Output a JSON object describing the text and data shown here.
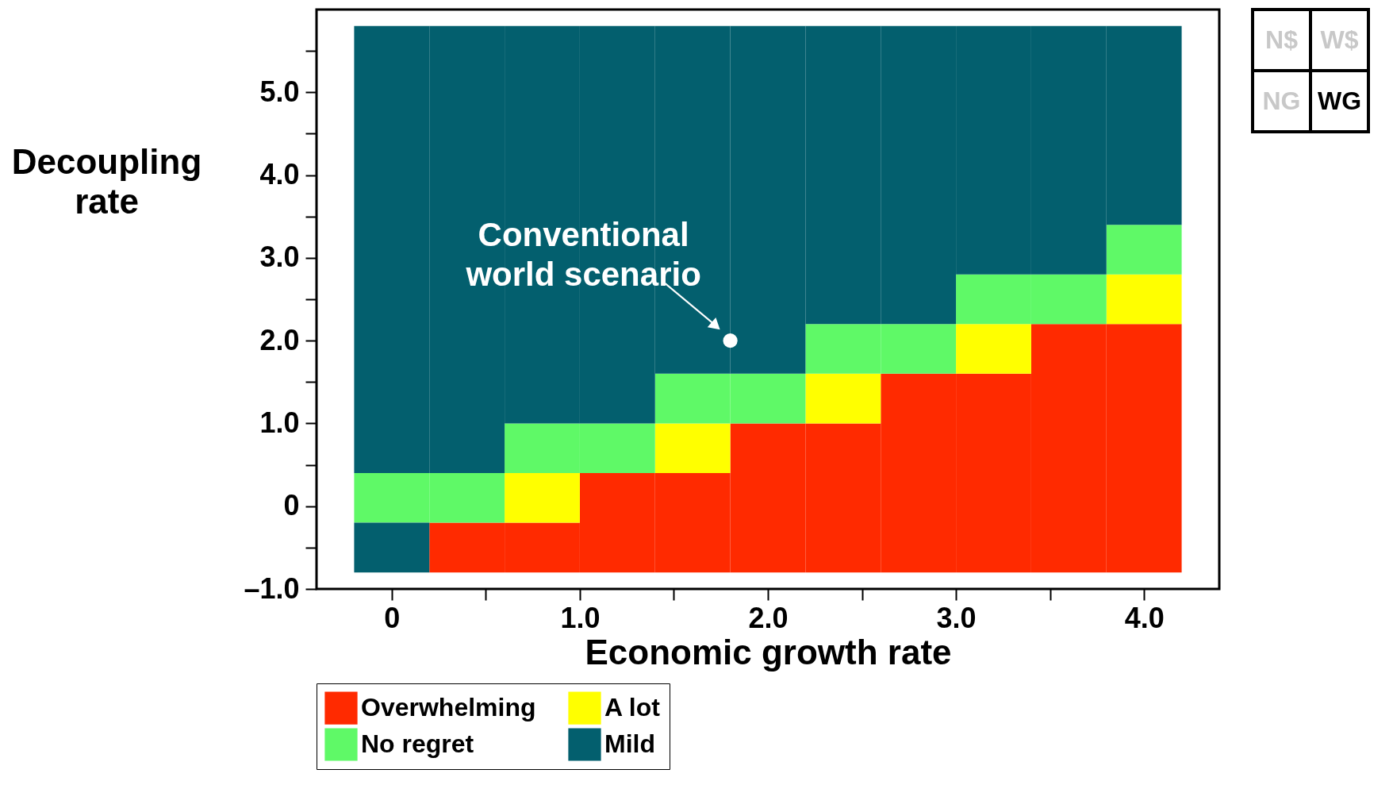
{
  "chart_data": [
    {
      "type": "bar",
      "xlabel": "Economic growth rate",
      "ylabel": "Decoupling\nrate",
      "x": [
        0,
        0.4,
        0.8,
        1.2,
        1.6,
        2.0,
        2.4,
        2.8,
        3.2,
        3.6,
        4.0
      ],
      "series": [
        {
          "color": "#035f6e",
          "base": [
            -0.8,
            null,
            null,
            null,
            null,
            null,
            null,
            null,
            null,
            null,
            null
          ],
          "values": [
            0.6,
            null,
            null,
            null,
            null,
            null,
            null,
            null,
            null,
            null,
            null
          ]
        },
        {
          "name": "Overwhelming",
          "color": "#ff2a00",
          "base": [
            null,
            -0.8,
            -0.8,
            -0.8,
            -0.8,
            -0.8,
            -0.8,
            -0.8,
            -0.8,
            -0.8,
            -0.8
          ],
          "values": [
            null,
            0.6,
            0.6,
            1.2,
            1.2,
            1.8,
            1.8,
            2.4,
            2.4,
            3.0,
            3.0
          ]
        },
        {
          "name": "A lot",
          "color": "#ffff00",
          "base": [
            null,
            null,
            -0.2,
            null,
            0.4,
            null,
            1.0,
            null,
            1.6,
            null,
            2.2
          ],
          "values": [
            null,
            null,
            0.6,
            null,
            0.6,
            null,
            0.6,
            null,
            0.6,
            null,
            0.6
          ]
        },
        {
          "name": "No regret",
          "color": "#5ff967",
          "base": [
            -0.2,
            -0.2,
            0.4,
            0.4,
            1.0,
            1.0,
            1.6,
            1.6,
            2.2,
            2.2,
            2.8
          ],
          "values": [
            0.6,
            0.6,
            0.6,
            0.6,
            0.6,
            0.6,
            0.6,
            0.6,
            0.6,
            0.6,
            0.6
          ]
        },
        {
          "name": "Mild",
          "color": "#035f6e",
          "base": [
            0.4,
            0.4,
            1.0,
            1.0,
            1.6,
            1.6,
            2.2,
            2.2,
            2.8,
            2.8,
            3.4
          ],
          "values": [
            5.4,
            5.4,
            4.8,
            4.8,
            4.2,
            4.2,
            3.6,
            3.6,
            3.0,
            3.0,
            2.4
          ]
        },
        {
          "type": "scatter",
          "color": "#ffffff",
          "x": [
            1.8
          ],
          "values": [
            2.0
          ]
        }
      ],
      "annotations": [
        {
          "text": "Conventional\nworld scenario",
          "x": 1.8,
          "y": 2.0
        }
      ],
      "xlim": [
        -0.4,
        4.4
      ],
      "ylim": [
        -1.0,
        6.0
      ],
      "xticks": [
        0,
        {
          "value": 0.5,
          "label": null
        },
        {
          "value": 1,
          "label": "1.0"
        },
        {
          "value": 1.5,
          "label": null
        },
        {
          "value": 2,
          "label": "2.0"
        },
        {
          "value": 2.5,
          "label": null
        },
        {
          "value": 3,
          "label": "3.0"
        },
        {
          "value": 3.5,
          "label": null
        },
        {
          "value": 4,
          "label": "4.0"
        }
      ],
      "yticks": [
        {
          "value": -1,
          "label": "–1.0"
        },
        {
          "value": -0.5,
          "label": null
        },
        0,
        {
          "value": 0.5,
          "label": null
        },
        {
          "value": 1,
          "label": "1.0"
        },
        {
          "value": 1.5,
          "label": null
        },
        {
          "value": 2,
          "label": "2.0"
        },
        {
          "value": 2.5,
          "label": null
        },
        {
          "value": 3,
          "label": "3.0"
        },
        {
          "value": 3.5,
          "label": null
        },
        {
          "value": 4,
          "label": "4.0"
        },
        {
          "value": 4.5,
          "label": null
        },
        {
          "value": 5,
          "label": "5.0"
        },
        {
          "value": 5.5,
          "label": null
        }
      ],
      "legend": "bottom",
      "grid": false
    },
    {
      "type": "other",
      "series": [
        {
          "name": "N$",
          "color": "#c8c8c8"
        },
        {
          "name": "W$",
          "color": "#c8c8c8"
        },
        {
          "name": "NG",
          "color": "#c8c8c8"
        },
        {
          "name": "WG",
          "color": "#000000"
        }
      ]
    }
  ]
}
